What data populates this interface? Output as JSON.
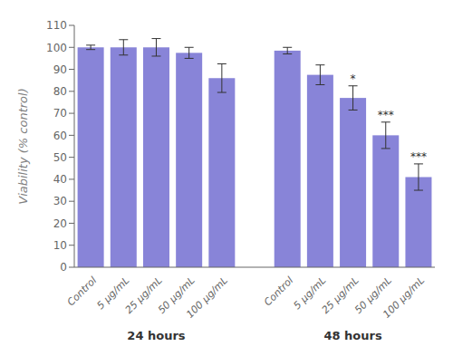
{
  "chart_data": {
    "type": "bar",
    "ylabel": "Viability (% control)",
    "categories": [
      "Control",
      "5 μg/mL",
      "25 μg/mL",
      "50 μg/mL",
      "100 μg/mL"
    ],
    "groups": [
      {
        "label": "24 hours",
        "values": [
          100,
          100,
          100,
          97.5,
          86
        ],
        "errors": [
          1.0,
          3.5,
          4.0,
          2.5,
          6.5
        ]
      },
      {
        "label": "48 hours",
        "values": [
          98.5,
          87.5,
          77,
          60,
          41
        ],
        "errors": [
          1.5,
          4.5,
          5.5,
          6.0,
          6.0
        ],
        "significance": [
          null,
          null,
          "*",
          "***",
          "***"
        ]
      }
    ],
    "ylim": [
      0,
      110
    ],
    "yticks": [
      0,
      10,
      20,
      30,
      40,
      50,
      60,
      70,
      80,
      90,
      100,
      110
    ],
    "color": "#8884d8",
    "grid": false
  }
}
